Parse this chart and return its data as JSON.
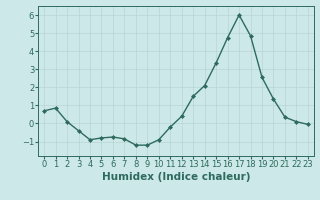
{
  "x": [
    0,
    1,
    2,
    3,
    4,
    5,
    6,
    7,
    8,
    9,
    10,
    11,
    12,
    13,
    14,
    15,
    16,
    17,
    18,
    19,
    20,
    21,
    22,
    23
  ],
  "y": [
    0.7,
    0.85,
    0.1,
    -0.4,
    -0.9,
    -0.8,
    -0.75,
    -0.85,
    -1.2,
    -1.2,
    -0.9,
    -0.2,
    0.4,
    1.5,
    2.1,
    3.35,
    4.75,
    6.0,
    4.85,
    2.55,
    1.35,
    0.35,
    0.1,
    -0.05
  ],
  "line_color": "#2e6b5e",
  "marker": "D",
  "marker_size": 2.0,
  "line_width": 1.0,
  "bg_color": "#cce8e8",
  "grid_color": "#b8d4d4",
  "tick_color": "#2e6b5e",
  "xlabel": "Humidex (Indice chaleur)",
  "xlabel_fontsize": 7.5,
  "xlabel_color": "#2e6b5e",
  "ylim": [
    -1.8,
    6.5
  ],
  "yticks": [
    -1,
    0,
    1,
    2,
    3,
    4,
    5,
    6
  ],
  "xtick_labels": [
    "0",
    "1",
    "2",
    "3",
    "4",
    "5",
    "6",
    "7",
    "8",
    "9",
    "10",
    "11",
    "12",
    "13",
    "14",
    "15",
    "16",
    "17",
    "18",
    "19",
    "20",
    "21",
    "22",
    "23"
  ],
  "tick_fontsize": 6.0
}
